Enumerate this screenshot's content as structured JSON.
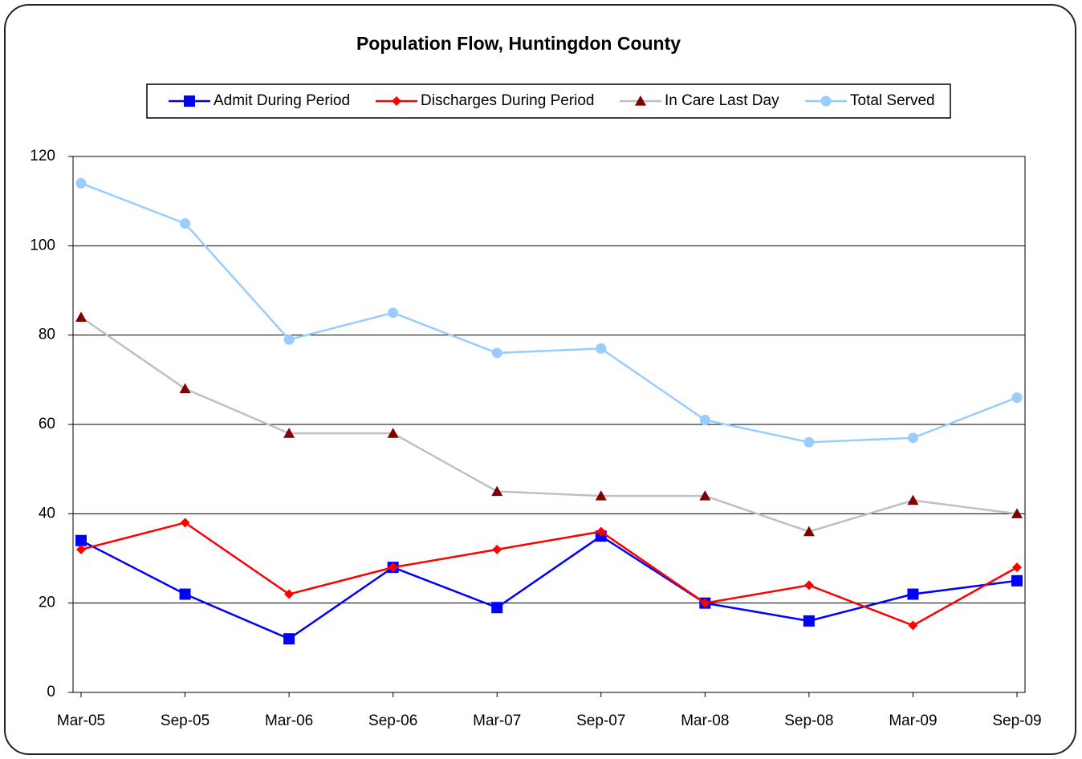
{
  "chart_data": {
    "type": "line",
    "title": "Population Flow, Huntingdon County",
    "categories": [
      "Mar-05",
      "Sep-05",
      "Mar-06",
      "Sep-06",
      "Mar-07",
      "Sep-07",
      "Mar-08",
      "Sep-08",
      "Mar-09",
      "Sep-09"
    ],
    "series": [
      {
        "name": "Admit During Period",
        "color": "#0000ff",
        "marker": "square",
        "marker_color": "#0000ff",
        "values": [
          34,
          22,
          12,
          28,
          19,
          35,
          20,
          16,
          22,
          25
        ]
      },
      {
        "name": "Discharges During Period",
        "color": "#ff0000",
        "marker": "diamond",
        "marker_color": "#ff0000",
        "values": [
          32,
          38,
          22,
          28,
          32,
          36,
          20,
          24,
          15,
          28
        ]
      },
      {
        "name": "In Care Last Day",
        "color": "#c0c0c0",
        "marker": "triangle",
        "marker_color": "#800000",
        "values": [
          84,
          68,
          58,
          58,
          45,
          44,
          44,
          36,
          43,
          40
        ]
      },
      {
        "name": "Total Served",
        "color": "#99ccff",
        "marker": "circle",
        "marker_color": "#99ccff",
        "values": [
          114,
          105,
          79,
          85,
          76,
          77,
          61,
          56,
          57,
          66
        ]
      }
    ],
    "ylim": [
      0,
      120
    ],
    "yticks": [
      0,
      20,
      40,
      60,
      80,
      100,
      120
    ],
    "grid": true,
    "legend": "top"
  }
}
